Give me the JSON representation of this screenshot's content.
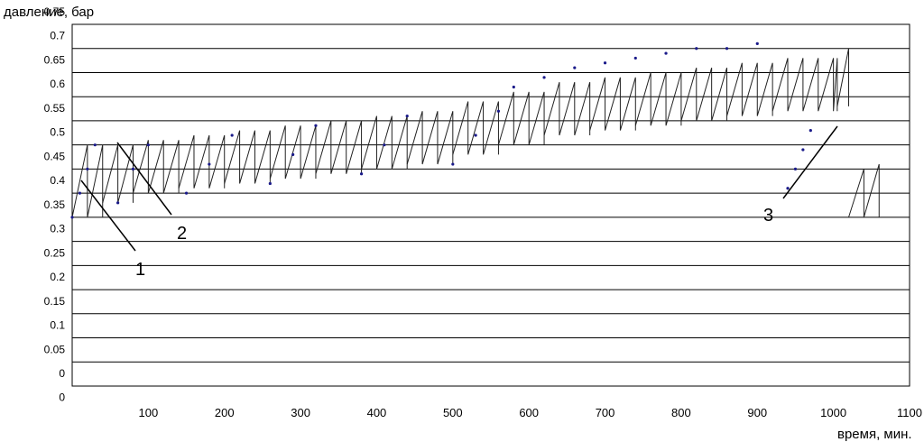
{
  "chart_data": {
    "type": "line",
    "title": "",
    "ylabel": "давление, бар",
    "xlabel": "время, мин.",
    "ylim": [
      0,
      0.75
    ],
    "xlim": [
      0,
      1100
    ],
    "grid": "horizontal",
    "yticks": [
      "0.75",
      "0.7",
      "0.65",
      "0.6",
      "0.55",
      "0.5",
      "0.45",
      "0.4",
      "0.35",
      "0.3",
      "0.25",
      "0.2",
      "0.15",
      "0.1",
      "0.05",
      "0",
      "0"
    ],
    "xticks": [
      {
        "label": "100",
        "value": 100
      },
      {
        "label": "200",
        "value": 200
      },
      {
        "label": "300",
        "value": 300
      },
      {
        "label": "400",
        "value": 400
      },
      {
        "label": "500",
        "value": 500
      },
      {
        "label": "600",
        "value": 600
      },
      {
        "label": "700",
        "value": 700
      },
      {
        "label": "800",
        "value": 800
      },
      {
        "label": "900",
        "value": 900
      },
      {
        "label": "1000",
        "value": 1000
      },
      {
        "label": "1100",
        "value": 1100
      }
    ],
    "series": [
      {
        "style": "solid line",
        "cycles": [
          {
            "t": 0,
            "p_min": 0.35,
            "p_max": 0.5,
            "tick": 20
          },
          {
            "t": 40,
            "p_min": 0.38,
            "p_max": 0.5,
            "tick": 20
          },
          {
            "t": 80,
            "p_min": 0.4,
            "p_max": 0.51,
            "tick": 20
          },
          {
            "t": 140,
            "p_min": 0.41,
            "p_max": 0.52,
            "tick": 20
          },
          {
            "t": 200,
            "p_min": 0.42,
            "p_max": 0.53,
            "tick": 20
          },
          {
            "t": 260,
            "p_min": 0.43,
            "p_max": 0.54,
            "tick": 20
          },
          {
            "t": 320,
            "p_min": 0.44,
            "p_max": 0.55,
            "tick": 20
          },
          {
            "t": 380,
            "p_min": 0.45,
            "p_max": 0.56,
            "tick": 20
          },
          {
            "t": 440,
            "p_min": 0.46,
            "p_max": 0.57,
            "tick": 20
          },
          {
            "t": 500,
            "p_min": 0.48,
            "p_max": 0.59,
            "tick": 20
          },
          {
            "t": 560,
            "p_min": 0.5,
            "p_max": 0.61,
            "tick": 20
          },
          {
            "t": 620,
            "p_min": 0.52,
            "p_max": 0.63,
            "tick": 20
          },
          {
            "t": 680,
            "p_min": 0.53,
            "p_max": 0.64,
            "tick": 20
          },
          {
            "t": 740,
            "p_min": 0.54,
            "p_max": 0.65,
            "tick": 20
          },
          {
            "t": 800,
            "p_min": 0.55,
            "p_max": 0.66,
            "tick": 20
          },
          {
            "t": 860,
            "p_min": 0.56,
            "p_max": 0.67,
            "tick": 20
          },
          {
            "t": 920,
            "p_min": 0.57,
            "p_max": 0.68,
            "tick": 20
          },
          {
            "t": 1005,
            "p_min": 0.58,
            "p_max": 0.7,
            "tick": 20
          },
          {
            "t": 1020,
            "p_min": 0.35,
            "p_max": 0.45,
            "tick": 20
          },
          {
            "t": 1040,
            "p_min": 0.35,
            "p_max": 0.46,
            "tick": 20
          }
        ]
      },
      {
        "style": "dotted",
        "points": [
          {
            "t": 0,
            "p": 0.35
          },
          {
            "t": 10,
            "p": 0.4
          },
          {
            "t": 20,
            "p": 0.45
          },
          {
            "t": 30,
            "p": 0.5
          },
          {
            "t": 60,
            "p": 0.38
          },
          {
            "t": 80,
            "p": 0.45
          },
          {
            "t": 100,
            "p": 0.5
          },
          {
            "t": 150,
            "p": 0.4
          },
          {
            "t": 180,
            "p": 0.46
          },
          {
            "t": 210,
            "p": 0.52
          },
          {
            "t": 260,
            "p": 0.42
          },
          {
            "t": 290,
            "p": 0.48
          },
          {
            "t": 320,
            "p": 0.54
          },
          {
            "t": 380,
            "p": 0.44
          },
          {
            "t": 410,
            "p": 0.5
          },
          {
            "t": 440,
            "p": 0.56
          },
          {
            "t": 500,
            "p": 0.46
          },
          {
            "t": 530,
            "p": 0.52
          },
          {
            "t": 560,
            "p": 0.57
          },
          {
            "t": 580,
            "p": 0.62
          },
          {
            "t": 620,
            "p": 0.64
          },
          {
            "t": 660,
            "p": 0.66
          },
          {
            "t": 700,
            "p": 0.67
          },
          {
            "t": 740,
            "p": 0.68
          },
          {
            "t": 780,
            "p": 0.69
          },
          {
            "t": 820,
            "p": 0.7
          },
          {
            "t": 860,
            "p": 0.7
          },
          {
            "t": 900,
            "p": 0.71
          },
          {
            "t": 940,
            "p": 0.41
          },
          {
            "t": 950,
            "p": 0.45
          },
          {
            "t": 960,
            "p": 0.49
          },
          {
            "t": 970,
            "p": 0.53
          }
        ]
      }
    ],
    "annotations": [
      "1",
      "2",
      "3"
    ]
  }
}
